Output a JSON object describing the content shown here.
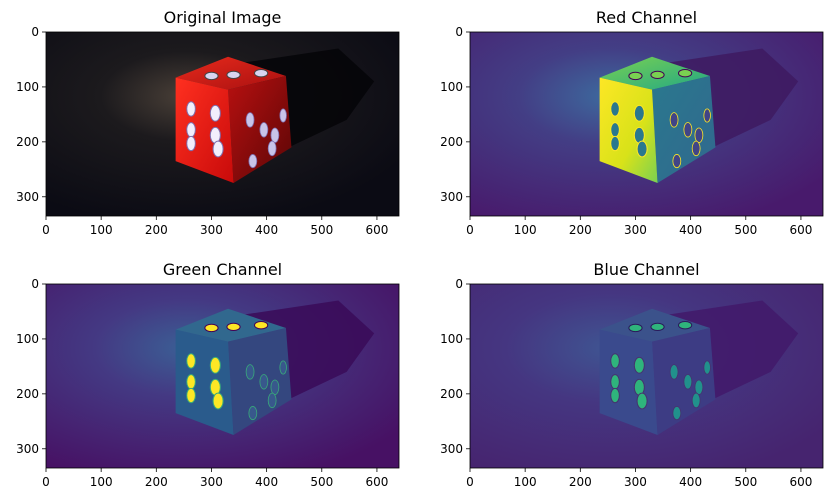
{
  "chart_data": [
    {
      "type": "image",
      "title": "Original Image",
      "xlim": [
        0,
        640
      ],
      "ylim": [
        335,
        0
      ],
      "xticks": [
        0,
        100,
        200,
        300,
        400,
        500,
        600
      ],
      "yticks": [
        0,
        100,
        200,
        300
      ],
      "channel": "rgb"
    },
    {
      "type": "image",
      "title": "Red Channel",
      "xlim": [
        0,
        640
      ],
      "ylim": [
        335,
        0
      ],
      "xticks": [
        0,
        100,
        200,
        300,
        400,
        500,
        600
      ],
      "yticks": [
        0,
        100,
        200,
        300
      ],
      "channel": "red",
      "colormap": "viridis"
    },
    {
      "type": "image",
      "title": "Green Channel",
      "xlim": [
        0,
        640
      ],
      "ylim": [
        335,
        0
      ],
      "xticks": [
        0,
        100,
        200,
        300,
        400,
        500,
        600
      ],
      "yticks": [
        0,
        100,
        200,
        300
      ],
      "channel": "green",
      "colormap": "viridis"
    },
    {
      "type": "image",
      "title": "Blue Channel",
      "xlim": [
        0,
        640
      ],
      "ylim": [
        335,
        0
      ],
      "xticks": [
        0,
        100,
        200,
        300,
        400,
        500,
        600
      ],
      "yticks": [
        0,
        100,
        200,
        300
      ],
      "channel": "blue",
      "colormap": "viridis"
    }
  ]
}
